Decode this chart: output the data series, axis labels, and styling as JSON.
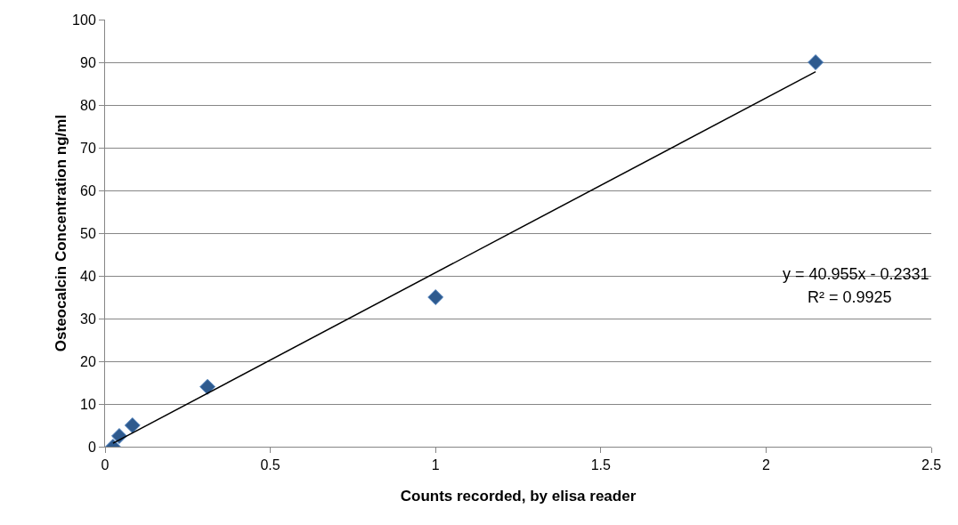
{
  "chart_data": {
    "type": "scatter",
    "xlabel": "Counts recorded, by elisa reader",
    "ylabel": "Osteocalcin Concentration ng/ml",
    "x": [
      0.024,
      0.043,
      0.083,
      0.31,
      1.0,
      2.15
    ],
    "series": [
      {
        "color": "#2e5a8e",
        "values": [
          0,
          2.5,
          5,
          14,
          35,
          90
        ],
        "marker": "diamond"
      },
      {
        "type": "line",
        "color": "#000000",
        "x": [
          0.024,
          2.15
        ],
        "values": [
          0.8,
          87.8
        ],
        "marker": "none"
      }
    ],
    "annotations": [
      "y = 40.955x - 0.2331",
      "R² = 0.9925"
    ],
    "xlim": [
      0,
      2.5
    ],
    "xticks": [
      0,
      0.5,
      1,
      1.5,
      2,
      2.5
    ],
    "ylim": [
      0,
      100
    ],
    "yticks": [
      0,
      10,
      20,
      30,
      40,
      50,
      60,
      70,
      80,
      90,
      100
    ],
    "grid": "y"
  }
}
